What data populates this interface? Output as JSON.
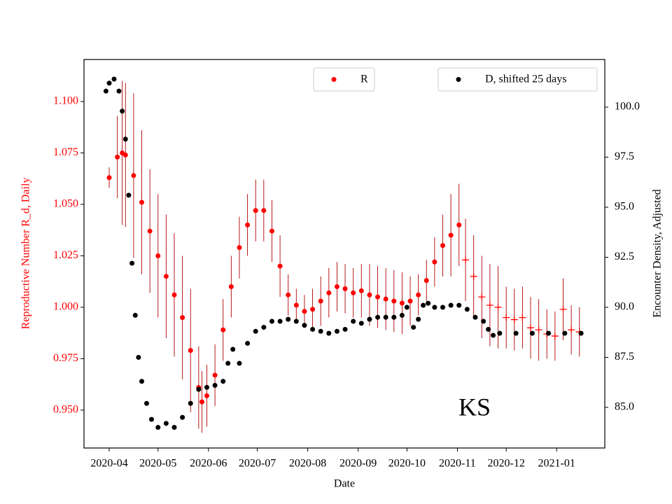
{
  "chart_data": {
    "type": "scatter",
    "annotation": "KS",
    "xlabel": "Date",
    "ylabel": "Reproductive Number R_d, Daily",
    "y2label": "Encounter Density, Adjusted",
    "xlim": [
      -15.5,
      304.6
    ],
    "xticks": [
      {
        "value": 0,
        "label": "2020-04"
      },
      {
        "value": 30,
        "label": "2020-05"
      },
      {
        "value": 61,
        "label": "2020-06"
      },
      {
        "value": 91,
        "label": "2020-07"
      },
      {
        "value": 122,
        "label": "2020-08"
      },
      {
        "value": 153,
        "label": "2020-09"
      },
      {
        "value": 183,
        "label": "2020-10"
      },
      {
        "value": 214,
        "label": "2020-11"
      },
      {
        "value": 244,
        "label": "2020-12"
      },
      {
        "value": 275,
        "label": "2021-01"
      }
    ],
    "ylim": [
      0.9316,
      1.1204
    ],
    "yticks": [
      {
        "value": 0.95,
        "label": "0.950"
      },
      {
        "value": 0.975,
        "label": "0.975"
      },
      {
        "value": 1.0,
        "label": "1.000"
      },
      {
        "value": 1.025,
        "label": "1.025"
      },
      {
        "value": 1.05,
        "label": "1.050"
      },
      {
        "value": 1.075,
        "label": "1.075"
      },
      {
        "value": 1.1,
        "label": "1.100"
      }
    ],
    "y2lim": [
      82.97,
      102.38
    ],
    "y2ticks": [
      {
        "value": 85,
        "label": "85.0"
      },
      {
        "value": 87.5,
        "label": "87.5"
      },
      {
        "value": 90,
        "label": "90.0"
      },
      {
        "value": 92.5,
        "label": "92.5"
      },
      {
        "value": 95,
        "label": "95.0"
      },
      {
        "value": 97.5,
        "label": "97.5"
      },
      {
        "value": 100,
        "label": "100.0"
      }
    ],
    "series": [
      {
        "name": "R",
        "color": "#ff0000",
        "error_color": "#b00000",
        "marker": "o",
        "x": [
          0,
          5,
          8,
          10,
          15,
          20,
          25,
          30,
          35,
          40,
          45,
          50,
          55,
          57,
          60,
          65,
          70,
          75,
          80,
          85,
          90,
          95,
          100,
          105,
          110,
          115,
          120,
          125,
          130,
          135,
          140,
          145,
          150,
          155,
          160,
          165,
          170,
          175,
          180,
          185,
          190,
          195,
          200,
          205,
          210,
          215
        ],
        "values": [
          1.063,
          1.073,
          1.075,
          1.074,
          1.064,
          1.051,
          1.037,
          1.025,
          1.015,
          1.006,
          0.995,
          0.979,
          0.961,
          0.954,
          0.957,
          0.967,
          0.989,
          1.01,
          1.029,
          1.04,
          1.047,
          1.047,
          1.037,
          1.02,
          1.006,
          1.001,
          0.998,
          0.999,
          1.003,
          1.007,
          1.01,
          1.009,
          1.007,
          1.008,
          1.006,
          1.005,
          1.004,
          1.003,
          1.002,
          1.003,
          1.006,
          1.013,
          1.022,
          1.03,
          1.035,
          1.04
        ],
        "errors": [
          0.005,
          0.02,
          0.035,
          0.035,
          0.04,
          0.035,
          0.03,
          0.03,
          0.03,
          0.03,
          0.03,
          0.03,
          0.02,
          0.015,
          0.015,
          0.015,
          0.015,
          0.015,
          0.015,
          0.015,
          0.015,
          0.015,
          0.015,
          0.015,
          0.01,
          0.008,
          0.008,
          0.01,
          0.012,
          0.012,
          0.012,
          0.012,
          0.012,
          0.013,
          0.015,
          0.015,
          0.015,
          0.015,
          0.015,
          0.012,
          0.01,
          0.01,
          0.012,
          0.015,
          0.02,
          0.02
        ]
      },
      {
        "color": "#ff0000",
        "error_color": "#b00000",
        "marker": "+",
        "x": [
          219,
          224,
          229,
          234,
          239,
          244,
          249,
          254,
          259,
          264,
          269,
          274,
          279,
          284,
          289
        ],
        "values": [
          1.023,
          1.015,
          1.005,
          1.001,
          1.0,
          0.995,
          0.994,
          0.995,
          0.99,
          0.989,
          0.987,
          0.986,
          0.999,
          0.989,
          0.988
        ],
        "errors": [
          0.02,
          0.02,
          0.02,
          0.02,
          0.02,
          0.015,
          0.015,
          0.015,
          0.015,
          0.015,
          0.012,
          0.012,
          0.015,
          0.012,
          0.012
        ]
      },
      {
        "name": "D, shifted 25 days",
        "color": "#000000",
        "marker": "o",
        "axis": "y2",
        "x": [
          -2,
          0,
          3,
          6,
          8,
          10,
          12,
          14,
          16,
          18,
          20,
          23,
          26,
          30,
          35,
          40,
          45,
          50,
          55,
          60,
          65,
          70,
          73,
          76,
          80,
          85,
          90,
          95,
          100,
          105,
          110,
          115,
          120,
          125,
          130,
          135,
          140,
          145,
          150,
          155,
          160,
          165,
          170,
          175,
          180,
          183,
          187,
          190,
          193,
          196,
          200,
          205,
          210,
          215,
          220,
          225,
          230,
          233,
          236,
          240,
          250,
          260,
          270,
          280,
          290
        ],
        "values": [
          100.8,
          101.2,
          101.4,
          100.8,
          99.8,
          98.4,
          95.6,
          92.2,
          89.6,
          87.5,
          86.3,
          85.2,
          84.4,
          84.0,
          84.2,
          84.0,
          84.5,
          85.2,
          85.9,
          86.0,
          86.1,
          86.3,
          87.2,
          87.9,
          87.2,
          88.2,
          88.8,
          89.0,
          89.3,
          89.3,
          89.4,
          89.3,
          89.1,
          88.9,
          88.8,
          88.7,
          88.8,
          88.9,
          89.3,
          89.2,
          89.4,
          89.5,
          89.5,
          89.5,
          89.6,
          90.0,
          89.0,
          89.4,
          90.1,
          90.2,
          90.0,
          90.0,
          90.1,
          90.1,
          89.9,
          89.5,
          89.3,
          88.9,
          88.6,
          88.7,
          88.7,
          88.7,
          88.7,
          88.7,
          88.7
        ]
      }
    ]
  }
}
